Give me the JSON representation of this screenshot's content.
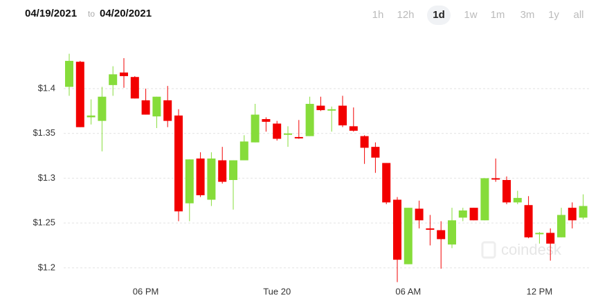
{
  "header": {
    "from": "04/19/2021",
    "to_word": "to",
    "to": "04/20/2021",
    "ranges": [
      "1h",
      "12h",
      "1d",
      "1w",
      "1m",
      "3m",
      "1y",
      "all"
    ],
    "selected": "1d"
  },
  "watermark": "coindesk",
  "chart_data": {
    "type": "candlestick",
    "categories": [
      null,
      null,
      null,
      null,
      null,
      null,
      null,
      "06 PM",
      null,
      null,
      null,
      null,
      null,
      null,
      null,
      null,
      null,
      null,
      null,
      "Tue 20",
      null,
      null,
      null,
      null,
      null,
      null,
      null,
      null,
      null,
      null,
      null,
      "06 AM",
      null,
      null,
      null,
      null,
      null,
      null,
      null,
      null,
      null,
      null,
      null,
      "12 PM",
      null,
      null,
      null,
      null
    ],
    "open": [
      1.402,
      1.43,
      1.368,
      1.364,
      1.404,
      1.418,
      1.413,
      1.387,
      1.369,
      1.387,
      1.37,
      1.272,
      1.322,
      1.276,
      1.32,
      1.298,
      1.32,
      1.34,
      1.366,
      1.361,
      1.349,
      1.346,
      1.347,
      1.381,
      1.376,
      1.381,
      1.358,
      1.347,
      1.335,
      1.317,
      1.276,
      1.204,
      1.266,
      1.244,
      1.242,
      1.226,
      1.256,
      1.267,
      1.253,
      1.3,
      1.298,
      1.273,
      1.27,
      1.238,
      1.239,
      1.234,
      1.267,
      1.256
    ],
    "high": [
      1.439,
      1.431,
      1.388,
      1.402,
      1.425,
      1.434,
      1.414,
      1.4,
      1.391,
      1.403,
      1.377,
      1.321,
      1.329,
      1.329,
      1.335,
      1.32,
      1.348,
      1.383,
      1.368,
      1.364,
      1.358,
      1.365,
      1.391,
      1.391,
      1.38,
      1.392,
      1.379,
      1.348,
      1.34,
      1.317,
      1.279,
      1.267,
      1.275,
      1.259,
      1.252,
      1.267,
      1.267,
      1.267,
      1.3,
      1.322,
      1.302,
      1.286,
      1.28,
      1.24,
      1.244,
      1.267,
      1.273,
      1.282
    ],
    "low": [
      1.392,
      1.357,
      1.36,
      1.33,
      1.392,
      1.401,
      1.389,
      1.371,
      1.356,
      1.357,
      1.252,
      1.252,
      1.279,
      1.269,
      1.294,
      1.265,
      1.32,
      1.34,
      1.352,
      1.342,
      1.335,
      1.344,
      1.347,
      1.375,
      1.352,
      1.357,
      1.352,
      1.316,
      1.306,
      1.271,
      1.184,
      1.204,
      1.244,
      1.225,
      1.199,
      1.222,
      1.252,
      1.253,
      1.253,
      1.296,
      1.271,
      1.271,
      1.233,
      1.227,
      1.208,
      1.234,
      1.244,
      1.254
    ],
    "close": [
      1.431,
      1.357,
      1.37,
      1.391,
      1.416,
      1.414,
      1.389,
      1.371,
      1.391,
      1.364,
      1.263,
      1.321,
      1.281,
      1.322,
      1.296,
      1.32,
      1.341,
      1.371,
      1.363,
      1.344,
      1.35,
      1.345,
      1.383,
      1.376,
      1.377,
      1.359,
      1.353,
      1.334,
      1.323,
      1.273,
      1.209,
      1.267,
      1.253,
      1.243,
      1.232,
      1.253,
      1.264,
      1.253,
      1.3,
      1.299,
      1.273,
      1.278,
      1.234,
      1.239,
      1.227,
      1.259,
      1.253,
      1.269
    ],
    "up_color": "#86dc3a",
    "down_color": "#f20000",
    "ylim": [
      1.18,
      1.46
    ],
    "yticks": [
      {
        "value": 1.2,
        "label": "$1.2"
      },
      {
        "value": 1.25,
        "label": "$1.25"
      },
      {
        "value": 1.3,
        "label": "$1.3"
      },
      {
        "value": 1.35,
        "label": "$1.35"
      },
      {
        "value": 1.4,
        "label": "$1.4"
      }
    ],
    "grid": true
  }
}
